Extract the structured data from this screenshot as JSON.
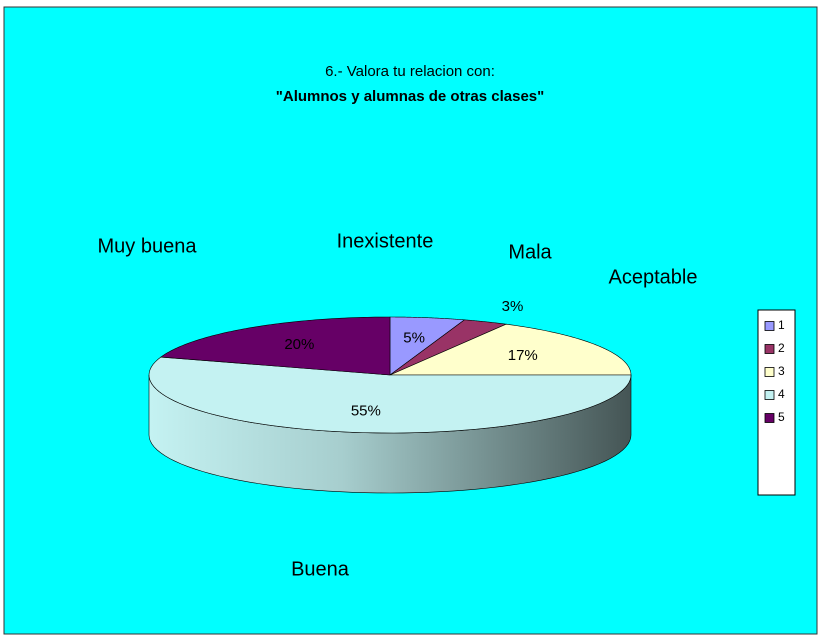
{
  "chart_data": {
    "type": "pie",
    "title": "6.- Valora tu relacion con:",
    "subtitle": "\"Alumnos y alumnas de otras clases\"",
    "categories": [
      "1",
      "2",
      "3",
      "4",
      "5"
    ],
    "category_labels": [
      "Inexistente",
      "Mala",
      "Aceptable",
      "Buena",
      "Muy buena"
    ],
    "values": [
      5,
      3,
      17,
      55,
      20
    ],
    "value_labels": [
      "5%",
      "3%",
      "17%",
      "55%",
      "20%"
    ],
    "colors": [
      "#9999ff",
      "#993366",
      "#ffffcc",
      "#c4f2f2",
      "#660066"
    ],
    "legend": "right"
  }
}
